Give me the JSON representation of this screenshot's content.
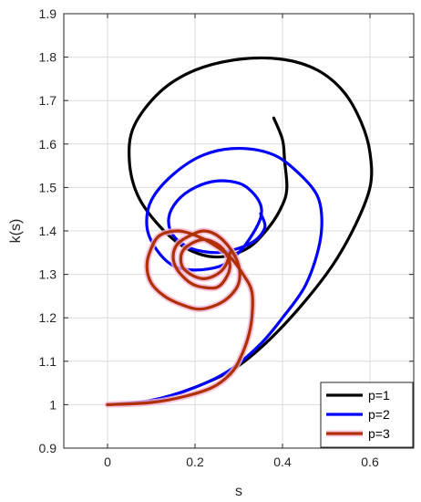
{
  "chart_data": {
    "type": "line",
    "title": "",
    "xlabel": "s",
    "ylabel": "k(s)",
    "xlim": [
      -0.1,
      0.7
    ],
    "ylim": [
      0.9,
      1.9
    ],
    "xticks": [
      "0",
      "0.2",
      "0.4",
      "0.6"
    ],
    "xtick_values": [
      0,
      0.2,
      0.4,
      0.6
    ],
    "yticks": [
      "0.9",
      "1",
      "1.1",
      "1.2",
      "1.3",
      "1.4",
      "1.5",
      "1.6",
      "1.7",
      "1.8",
      "1.9"
    ],
    "ytick_values": [
      0.9,
      1.0,
      1.1,
      1.2,
      1.3,
      1.4,
      1.5,
      1.6,
      1.7,
      1.8,
      1.9
    ],
    "grid": true,
    "legend_position": "bottom-right",
    "series": [
      {
        "name": "p=1",
        "color": "#000000",
        "x": [
          0.0,
          0.1,
          0.2,
          0.3,
          0.4,
          0.5,
          0.56,
          0.6,
          0.6,
          0.58,
          0.54,
          0.48,
          0.4,
          0.3,
          0.2,
          0.12,
          0.06,
          0.05,
          0.07,
          0.12,
          0.18,
          0.25,
          0.32,
          0.37,
          0.4,
          0.41,
          0.405,
          0.4,
          0.38
        ],
        "y": [
          1.0,
          1.01,
          1.04,
          1.09,
          1.18,
          1.3,
          1.4,
          1.5,
          1.58,
          1.65,
          1.72,
          1.77,
          1.795,
          1.795,
          1.77,
          1.72,
          1.64,
          1.56,
          1.48,
          1.41,
          1.36,
          1.34,
          1.36,
          1.41,
          1.46,
          1.5,
          1.56,
          1.61,
          1.66
        ]
      },
      {
        "name": "p=2",
        "color": "#0000ff",
        "x": [
          0.0,
          0.1,
          0.2,
          0.28,
          0.35,
          0.4,
          0.45,
          0.48,
          0.49,
          0.48,
          0.44,
          0.38,
          0.3,
          0.22,
          0.15,
          0.1,
          0.09,
          0.11,
          0.15,
          0.2,
          0.26,
          0.3,
          0.33,
          0.35,
          0.35,
          0.33,
          0.3,
          0.25,
          0.2,
          0.16,
          0.14,
          0.15,
          0.19,
          0.25,
          0.3,
          0.34,
          0.36,
          0.35
        ],
        "y": [
          1.0,
          1.01,
          1.04,
          1.08,
          1.14,
          1.2,
          1.27,
          1.35,
          1.42,
          1.48,
          1.53,
          1.575,
          1.59,
          1.575,
          1.53,
          1.47,
          1.41,
          1.36,
          1.32,
          1.31,
          1.32,
          1.35,
          1.39,
          1.43,
          1.46,
          1.49,
          1.51,
          1.515,
          1.5,
          1.47,
          1.43,
          1.39,
          1.36,
          1.35,
          1.36,
          1.38,
          1.41,
          1.44
        ]
      },
      {
        "name": "p=3",
        "color": "#b03000",
        "x": [
          0.0,
          0.1,
          0.18,
          0.24,
          0.28,
          0.3,
          0.32,
          0.33,
          0.33,
          0.31,
          0.28,
          0.24,
          0.2,
          0.16,
          0.12,
          0.1,
          0.09,
          0.1,
          0.13,
          0.17,
          0.21,
          0.25,
          0.28,
          0.3,
          0.3,
          0.28,
          0.25,
          0.22,
          0.19,
          0.16,
          0.15,
          0.16,
          0.19,
          0.22,
          0.25,
          0.27,
          0.28,
          0.27,
          0.25,
          0.22,
          0.19,
          0.17,
          0.17,
          0.19,
          0.22,
          0.25,
          0.27,
          0.28
        ],
        "y": [
          1.0,
          1.005,
          1.02,
          1.04,
          1.07,
          1.1,
          1.15,
          1.2,
          1.26,
          1.3,
          1.34,
          1.37,
          1.39,
          1.4,
          1.39,
          1.36,
          1.32,
          1.28,
          1.25,
          1.23,
          1.22,
          1.23,
          1.25,
          1.28,
          1.32,
          1.36,
          1.39,
          1.4,
          1.39,
          1.37,
          1.34,
          1.31,
          1.28,
          1.27,
          1.27,
          1.29,
          1.32,
          1.35,
          1.37,
          1.38,
          1.37,
          1.35,
          1.32,
          1.3,
          1.29,
          1.3,
          1.32,
          1.35
        ]
      }
    ]
  }
}
